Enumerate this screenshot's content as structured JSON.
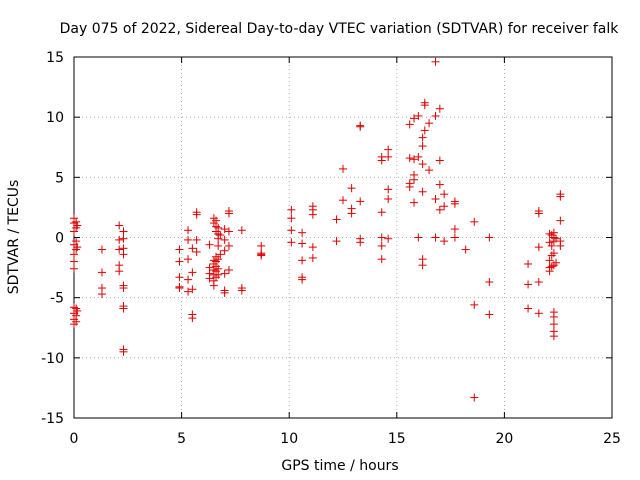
{
  "chart_data": {
    "type": "scatter",
    "title": "Day 075 of 2022, Sidereal Day-to-day VTEC variation (SDTVAR) for receiver falk",
    "xlabel": "GPS time / hours",
    "ylabel": "SDTVAR / TECUs",
    "xlim": [
      0,
      25
    ],
    "ylim": [
      -15,
      15
    ],
    "xticks": [
      0,
      5,
      10,
      15,
      20,
      25
    ],
    "yticks": [
      -15,
      -10,
      -5,
      0,
      5,
      10,
      15
    ],
    "grid": true,
    "marker": "+",
    "color": "#dd0000",
    "series": [
      {
        "name": "SDTVAR",
        "points": [
          [
            0.0,
            1.6
          ],
          [
            0.0,
            1.2
          ],
          [
            0.0,
            0.5
          ],
          [
            0.0,
            -0.6
          ],
          [
            0.0,
            -1.4
          ],
          [
            0.0,
            -2.0
          ],
          [
            0.0,
            -2.6
          ],
          [
            0.0,
            -5.8
          ],
          [
            0.0,
            -6.3
          ],
          [
            0.0,
            -6.8
          ],
          [
            0.0,
            -7.2
          ],
          [
            0.1,
            1.3
          ],
          [
            0.1,
            0.8
          ],
          [
            0.1,
            -0.3
          ],
          [
            0.1,
            -1.0
          ],
          [
            0.1,
            -5.9
          ],
          [
            0.1,
            -6.5
          ],
          [
            0.1,
            -7.0
          ],
          [
            0.15,
            1.0
          ],
          [
            0.15,
            -0.8
          ],
          [
            0.15,
            -6.1
          ],
          [
            1.3,
            -1.0
          ],
          [
            1.3,
            -2.9
          ],
          [
            1.3,
            -4.2
          ],
          [
            1.3,
            -4.7
          ],
          [
            2.1,
            1.0
          ],
          [
            2.1,
            -0.2
          ],
          [
            2.1,
            -1.0
          ],
          [
            2.1,
            -2.3
          ],
          [
            2.1,
            -2.8
          ],
          [
            2.3,
            0.5
          ],
          [
            2.3,
            -0.1
          ],
          [
            2.3,
            -0.9
          ],
          [
            2.3,
            -1.4
          ],
          [
            2.3,
            -4.0
          ],
          [
            2.3,
            -4.2
          ],
          [
            2.3,
            -5.7
          ],
          [
            2.3,
            -5.9
          ],
          [
            2.3,
            -9.3
          ],
          [
            2.3,
            -9.5
          ],
          [
            4.9,
            -1.0
          ],
          [
            4.9,
            -2.0
          ],
          [
            4.9,
            -3.3
          ],
          [
            4.9,
            -4.1
          ],
          [
            4.9,
            -4.2
          ],
          [
            5.3,
            0.6
          ],
          [
            5.3,
            -0.2
          ],
          [
            5.3,
            -1.8
          ],
          [
            5.3,
            -3.5
          ],
          [
            5.3,
            -4.5
          ],
          [
            5.5,
            -0.9
          ],
          [
            5.5,
            -2.9
          ],
          [
            5.5,
            -4.3
          ],
          [
            5.5,
            -6.4
          ],
          [
            5.5,
            -6.7
          ],
          [
            5.7,
            2.1
          ],
          [
            5.7,
            1.9
          ],
          [
            5.7,
            -0.2
          ],
          [
            5.7,
            -1.2
          ],
          [
            6.3,
            -0.6
          ],
          [
            6.3,
            -2.5
          ],
          [
            6.3,
            -3.0
          ],
          [
            6.3,
            -3.4
          ],
          [
            6.5,
            1.6
          ],
          [
            6.5,
            1.2
          ],
          [
            6.5,
            -1.9
          ],
          [
            6.5,
            -2.2
          ],
          [
            6.5,
            -2.7
          ],
          [
            6.5,
            -3.1
          ],
          [
            6.5,
            -3.6
          ],
          [
            6.5,
            -4.0
          ],
          [
            6.6,
            1.4
          ],
          [
            6.6,
            0.9
          ],
          [
            6.6,
            0.5
          ],
          [
            6.6,
            -1.6
          ],
          [
            6.6,
            -2.0
          ],
          [
            6.6,
            -2.4
          ],
          [
            6.6,
            -2.8
          ],
          [
            6.6,
            -3.3
          ],
          [
            6.7,
            0.8
          ],
          [
            6.7,
            0.3
          ],
          [
            6.7,
            -0.1
          ],
          [
            6.7,
            -0.7
          ],
          [
            6.7,
            -1.8
          ],
          [
            6.7,
            -2.6
          ],
          [
            6.7,
            -3.1
          ],
          [
            6.8,
            0.2
          ],
          [
            6.8,
            -1.4
          ],
          [
            7.0,
            0.7
          ],
          [
            7.0,
            -0.2
          ],
          [
            7.0,
            -1.1
          ],
          [
            7.0,
            -3.0
          ],
          [
            7.0,
            -4.4
          ],
          [
            7.0,
            -4.6
          ],
          [
            7.2,
            2.2
          ],
          [
            7.2,
            2.0
          ],
          [
            7.2,
            0.5
          ],
          [
            7.2,
            -0.7
          ],
          [
            7.2,
            -2.7
          ],
          [
            7.8,
            0.6
          ],
          [
            7.8,
            -4.2
          ],
          [
            7.8,
            -4.4
          ],
          [
            8.7,
            -0.7
          ],
          [
            8.7,
            -1.3
          ],
          [
            8.7,
            -1.4
          ],
          [
            8.7,
            -1.5
          ],
          [
            10.1,
            2.3
          ],
          [
            10.1,
            1.6
          ],
          [
            10.1,
            0.6
          ],
          [
            10.1,
            -0.4
          ],
          [
            10.6,
            0.4
          ],
          [
            10.6,
            -0.5
          ],
          [
            10.6,
            -1.9
          ],
          [
            10.6,
            -3.3
          ],
          [
            10.6,
            -3.5
          ],
          [
            11.1,
            2.6
          ],
          [
            11.1,
            2.3
          ],
          [
            11.1,
            1.9
          ],
          [
            11.1,
            -0.8
          ],
          [
            11.1,
            -1.7
          ],
          [
            12.2,
            1.5
          ],
          [
            12.2,
            -0.3
          ],
          [
            12.5,
            5.7
          ],
          [
            12.5,
            3.1
          ],
          [
            12.9,
            4.1
          ],
          [
            12.9,
            2.4
          ],
          [
            12.9,
            2.0
          ],
          [
            13.3,
            9.3
          ],
          [
            13.3,
            9.2
          ],
          [
            13.3,
            3.0
          ],
          [
            13.3,
            -0.1
          ],
          [
            13.3,
            -0.4
          ],
          [
            14.3,
            6.7
          ],
          [
            14.3,
            6.4
          ],
          [
            14.3,
            2.1
          ],
          [
            14.3,
            0.0
          ],
          [
            14.3,
            -0.7
          ],
          [
            14.3,
            -1.8
          ],
          [
            14.6,
            7.3
          ],
          [
            14.6,
            6.7
          ],
          [
            14.6,
            4.0
          ],
          [
            14.6,
            3.2
          ],
          [
            14.6,
            -0.1
          ],
          [
            15.6,
            9.4
          ],
          [
            15.6,
            6.6
          ],
          [
            15.6,
            4.5
          ],
          [
            15.6,
            4.2
          ],
          [
            15.8,
            9.9
          ],
          [
            15.8,
            6.5
          ],
          [
            15.8,
            5.2
          ],
          [
            15.8,
            4.8
          ],
          [
            15.8,
            2.9
          ],
          [
            16.0,
            10.1
          ],
          [
            16.0,
            6.7
          ],
          [
            16.0,
            0.0
          ],
          [
            16.2,
            8.3
          ],
          [
            16.2,
            7.6
          ],
          [
            16.2,
            6.1
          ],
          [
            16.2,
            3.8
          ],
          [
            16.2,
            -1.8
          ],
          [
            16.2,
            -2.3
          ],
          [
            16.3,
            11.2
          ],
          [
            16.3,
            11.0
          ],
          [
            16.3,
            8.9
          ],
          [
            16.5,
            9.5
          ],
          [
            16.5,
            5.6
          ],
          [
            16.8,
            14.6
          ],
          [
            16.8,
            10.1
          ],
          [
            16.8,
            3.2
          ],
          [
            16.8,
            0.0
          ],
          [
            17.0,
            10.7
          ],
          [
            17.0,
            6.4
          ],
          [
            17.0,
            4.4
          ],
          [
            17.0,
            2.3
          ],
          [
            17.2,
            3.6
          ],
          [
            17.2,
            2.6
          ],
          [
            17.2,
            -0.3
          ],
          [
            17.7,
            3.0
          ],
          [
            17.7,
            2.8
          ],
          [
            17.7,
            0.7
          ],
          [
            17.7,
            0.0
          ],
          [
            18.2,
            -1.0
          ],
          [
            18.6,
            1.3
          ],
          [
            18.6,
            -5.6
          ],
          [
            18.6,
            -13.3
          ],
          [
            19.3,
            0.0
          ],
          [
            19.3,
            -3.7
          ],
          [
            19.3,
            -6.4
          ],
          [
            21.1,
            -2.2
          ],
          [
            21.1,
            -3.9
          ],
          [
            21.1,
            -5.9
          ],
          [
            21.6,
            2.2
          ],
          [
            21.6,
            2.0
          ],
          [
            21.6,
            -0.8
          ],
          [
            21.6,
            -3.7
          ],
          [
            21.6,
            -6.3
          ],
          [
            22.1,
            0.3
          ],
          [
            22.1,
            -0.4
          ],
          [
            22.1,
            -1.9
          ],
          [
            22.1,
            -2.5
          ],
          [
            22.1,
            -2.8
          ],
          [
            22.2,
            0.2
          ],
          [
            22.2,
            -0.7
          ],
          [
            22.2,
            -1.5
          ],
          [
            22.2,
            -2.4
          ],
          [
            22.3,
            0.4
          ],
          [
            22.3,
            0.0
          ],
          [
            22.3,
            -0.3
          ],
          [
            22.3,
            -1.3
          ],
          [
            22.3,
            -2.3
          ],
          [
            22.3,
            -6.2
          ],
          [
            22.3,
            -6.6
          ],
          [
            22.3,
            -7.2
          ],
          [
            22.3,
            -7.8
          ],
          [
            22.3,
            -8.2
          ],
          [
            22.4,
            -0.1
          ],
          [
            22.4,
            -2.1
          ],
          [
            22.6,
            3.6
          ],
          [
            22.6,
            3.4
          ],
          [
            22.6,
            1.4
          ],
          [
            22.6,
            -0.3
          ],
          [
            22.6,
            -0.7
          ]
        ]
      }
    ]
  }
}
